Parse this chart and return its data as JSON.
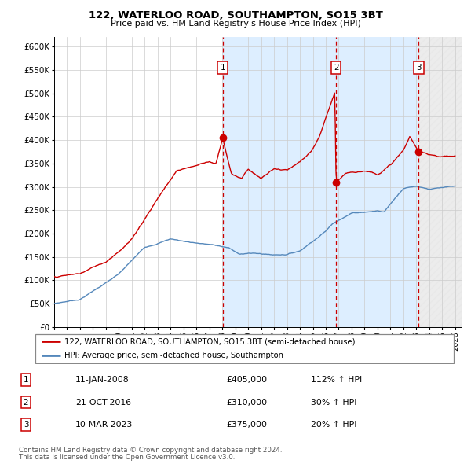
{
  "title": "122, WATERLOO ROAD, SOUTHAMPTON, SO15 3BT",
  "subtitle": "Price paid vs. HM Land Registry's House Price Index (HPI)",
  "legend_red": "122, WATERLOO ROAD, SOUTHAMPTON, SO15 3BT (semi-detached house)",
  "legend_blue": "HPI: Average price, semi-detached house, Southampton",
  "footer1": "Contains HM Land Registry data © Crown copyright and database right 2024.",
  "footer2": "This data is licensed under the Open Government Licence v3.0.",
  "sales": [
    {
      "num": 1,
      "date_label": "11-JAN-2008",
      "price_label": "£405,000",
      "hpi_label": "112% ↑ HPI",
      "x_year": 2008.03,
      "y_val": 405000
    },
    {
      "num": 2,
      "date_label": "21-OCT-2016",
      "price_label": "£310,000",
      "hpi_label": "30% ↑ HPI",
      "x_year": 2016.8,
      "y_val": 310000
    },
    {
      "num": 3,
      "date_label": "10-MAR-2023",
      "price_label": "£375,000",
      "hpi_label": "20% ↑ HPI",
      "x_year": 2023.19,
      "y_val": 375000
    }
  ],
  "ylim": [
    0,
    620000
  ],
  "xlim": [
    1995.0,
    2026.5
  ],
  "yticks": [
    0,
    50000,
    100000,
    150000,
    200000,
    250000,
    300000,
    350000,
    400000,
    450000,
    500000,
    550000,
    600000
  ],
  "ytick_labels": [
    "£0",
    "£50K",
    "£100K",
    "£150K",
    "£200K",
    "£250K",
    "£300K",
    "£350K",
    "£400K",
    "£450K",
    "£500K",
    "£550K",
    "£600K"
  ],
  "xticks": [
    1995,
    1996,
    1997,
    1998,
    1999,
    2000,
    2001,
    2002,
    2003,
    2004,
    2005,
    2006,
    2007,
    2008,
    2009,
    2010,
    2011,
    2012,
    2013,
    2014,
    2015,
    2016,
    2017,
    2018,
    2019,
    2020,
    2021,
    2022,
    2023,
    2024,
    2025,
    2026
  ],
  "red_color": "#cc0000",
  "blue_color": "#5588bb",
  "bg_span": "#ddeeff",
  "bg_hatch_color": "#cccccc",
  "sale1_x": 2008.03,
  "sale2_x": 2016.8,
  "sale3_x": 2023.19,
  "xlim_end": 2026.5
}
